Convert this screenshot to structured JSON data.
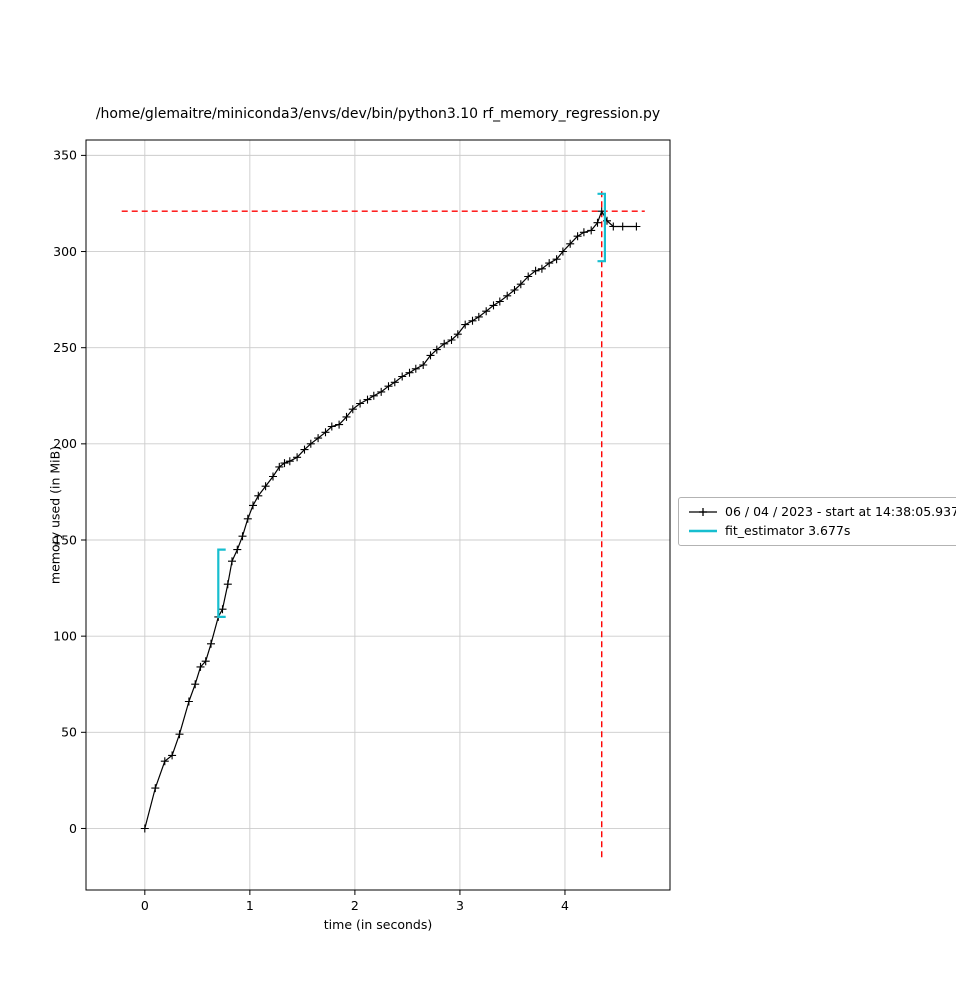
{
  "figure": {
    "title": "/home/glemaitre/miniconda3/envs/dev/bin/python3.10 rf_memory_regression.py",
    "xlabel": "time (in seconds)",
    "ylabel": "memory used (in MiB)"
  },
  "legend": {
    "entries": [
      {
        "label": "06 / 04 / 2023 - start at 14:38:05.937",
        "color": "#000000",
        "marker": "plus-line"
      },
      {
        "label": "fit_estimator 3.677s",
        "color": "#17becf",
        "marker": "line"
      }
    ]
  },
  "colors": {
    "series": "#000000",
    "peak_lines": "#ff0000",
    "function_brackets": "#17becf",
    "grid": "#cccccc",
    "spines": "#000000"
  },
  "chart_data": {
    "type": "line",
    "title": "/home/glemaitre/miniconda3/envs/dev/bin/python3.10 rf_memory_regression.py",
    "xlabel": "time (in seconds)",
    "ylabel": "memory used (in MiB)",
    "grid": true,
    "legend_position": "outside-right",
    "xlim": [
      -0.56,
      5.0
    ],
    "ylim": [
      -32,
      358
    ],
    "xticks": [
      0,
      1,
      2,
      3,
      4
    ],
    "yticks": [
      0,
      50,
      100,
      150,
      200,
      250,
      300,
      350
    ],
    "series": [
      {
        "name": "06 / 04 / 2023 - start at 14:38:05.937",
        "color": "#000000",
        "marker": "+",
        "x": [
          0.0,
          0.1,
          0.19,
          0.26,
          0.33,
          0.42,
          0.48,
          0.53,
          0.58,
          0.63,
          0.7,
          0.74,
          0.79,
          0.83,
          0.88,
          0.93,
          0.98,
          1.03,
          1.08,
          1.15,
          1.22,
          1.28,
          1.33,
          1.38,
          1.45,
          1.52,
          1.58,
          1.65,
          1.72,
          1.78,
          1.85,
          1.92,
          1.98,
          2.05,
          2.12,
          2.18,
          2.25,
          2.32,
          2.38,
          2.45,
          2.52,
          2.58,
          2.65,
          2.72,
          2.78,
          2.85,
          2.92,
          2.98,
          3.05,
          3.12,
          3.18,
          3.25,
          3.32,
          3.38,
          3.45,
          3.52,
          3.58,
          3.65,
          3.72,
          3.78,
          3.85,
          3.92,
          3.98,
          4.05,
          4.12,
          4.18,
          4.25,
          4.31,
          4.35,
          4.4,
          4.46,
          4.55,
          4.68
        ],
        "y": [
          0,
          21,
          35,
          38,
          49,
          66,
          75,
          84,
          87,
          96,
          110,
          114,
          127,
          139,
          145,
          152,
          161,
          168,
          173,
          178,
          183,
          188,
          190,
          191,
          193,
          197,
          200,
          203,
          206,
          209,
          210,
          214,
          218,
          221,
          223,
          225,
          227,
          230,
          232,
          235,
          237,
          239,
          241,
          246,
          249,
          252,
          254,
          257,
          262,
          264,
          266,
          269,
          272,
          274,
          277,
          280,
          283,
          287,
          290,
          291,
          294,
          296,
          300,
          304,
          308,
          310,
          311,
          315,
          321,
          316,
          313,
          313,
          313
        ]
      }
    ],
    "annotations": {
      "peak_memory_mib": 321,
      "peak_time_s": 4.35,
      "hline": {
        "y": 321,
        "x0": -0.22,
        "x1": 4.76,
        "color": "#ff0000",
        "style": "dashed"
      },
      "vline": {
        "x": 4.35,
        "y0": -15,
        "y1": 332,
        "color": "#ff0000",
        "style": "dashed"
      },
      "function_brackets": [
        {
          "name": "fit_estimator-start",
          "x": 0.7,
          "y0": 110,
          "y1": 145,
          "direction": "right",
          "color": "#17becf"
        },
        {
          "name": "fit_estimator-end",
          "x": 4.38,
          "y0": 295,
          "y1": 330,
          "direction": "left",
          "color": "#17becf"
        }
      ]
    }
  }
}
